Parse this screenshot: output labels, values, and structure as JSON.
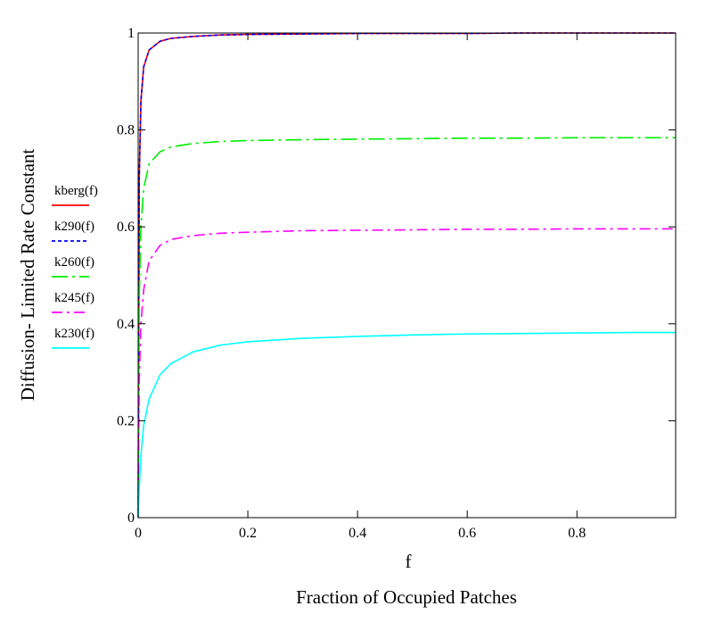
{
  "chart_data": {
    "type": "line",
    "title": "",
    "xlabel": "f",
    "xlabel_sub": "Fraction of Occupied Patches",
    "ylabel": "Diffusion- Limited Rate Constant",
    "xlim": [
      0,
      0.98
    ],
    "ylim": [
      0,
      1
    ],
    "grid": false,
    "legend_placement": "left",
    "x_ticks": [
      {
        "value": 0,
        "label": "0"
      },
      {
        "value": 0.2,
        "label": "0.2"
      },
      {
        "value": 0.4,
        "label": "0.4"
      },
      {
        "value": 0.6,
        "label": "0.6"
      },
      {
        "value": 0.8,
        "label": "0.8"
      }
    ],
    "y_ticks": [
      {
        "value": 0,
        "label": "0"
      },
      {
        "value": 0.2,
        "label": "0.2"
      },
      {
        "value": 0.4,
        "label": "0.4"
      },
      {
        "value": 0.6,
        "label": "0.6"
      },
      {
        "value": 0.8,
        "label": "0.8"
      },
      {
        "value": 1,
        "label": "1"
      }
    ],
    "x": [
      0,
      0.002,
      0.005,
      0.01,
      0.02,
      0.04,
      0.06,
      0.1,
      0.15,
      0.2,
      0.3,
      0.4,
      0.5,
      0.6,
      0.7,
      0.8,
      0.9,
      0.98
    ],
    "series": [
      {
        "name": "kberg(f)",
        "color": "#ff0000",
        "dash": "",
        "values": [
          0.0,
          0.7,
          0.86,
          0.93,
          0.965,
          0.983,
          0.989,
          0.993,
          0.996,
          0.997,
          0.998,
          0.999,
          0.999,
          0.999,
          1.0,
          1.0,
          1.0,
          1.0
        ]
      },
      {
        "name": "k290(f)",
        "color": "#0000ff",
        "dash": "4,3",
        "values": [
          0.0,
          0.7,
          0.86,
          0.93,
          0.965,
          0.983,
          0.989,
          0.993,
          0.996,
          0.997,
          0.998,
          0.999,
          0.999,
          0.999,
          1.0,
          1.0,
          1.0,
          1.0
        ]
      },
      {
        "name": "k260(f)",
        "color": "#00ee00",
        "dash": "18,5,3,5",
        "values": [
          0.0,
          0.45,
          0.6,
          0.68,
          0.73,
          0.755,
          0.765,
          0.772,
          0.776,
          0.778,
          0.78,
          0.781,
          0.782,
          0.783,
          0.783,
          0.784,
          0.784,
          0.784
        ]
      },
      {
        "name": "k245(f)",
        "color": "#ff00ff",
        "dash": "12,5,3,5",
        "values": [
          0.0,
          0.28,
          0.4,
          0.47,
          0.53,
          0.562,
          0.574,
          0.582,
          0.587,
          0.589,
          0.592,
          0.593,
          0.594,
          0.595,
          0.595,
          0.596,
          0.596,
          0.596
        ]
      },
      {
        "name": "k230(f)",
        "color": "#00ffff",
        "dash": "",
        "values": [
          0.0,
          0.06,
          0.13,
          0.19,
          0.245,
          0.295,
          0.318,
          0.342,
          0.356,
          0.363,
          0.37,
          0.374,
          0.377,
          0.379,
          0.38,
          0.381,
          0.382,
          0.382
        ]
      }
    ]
  }
}
